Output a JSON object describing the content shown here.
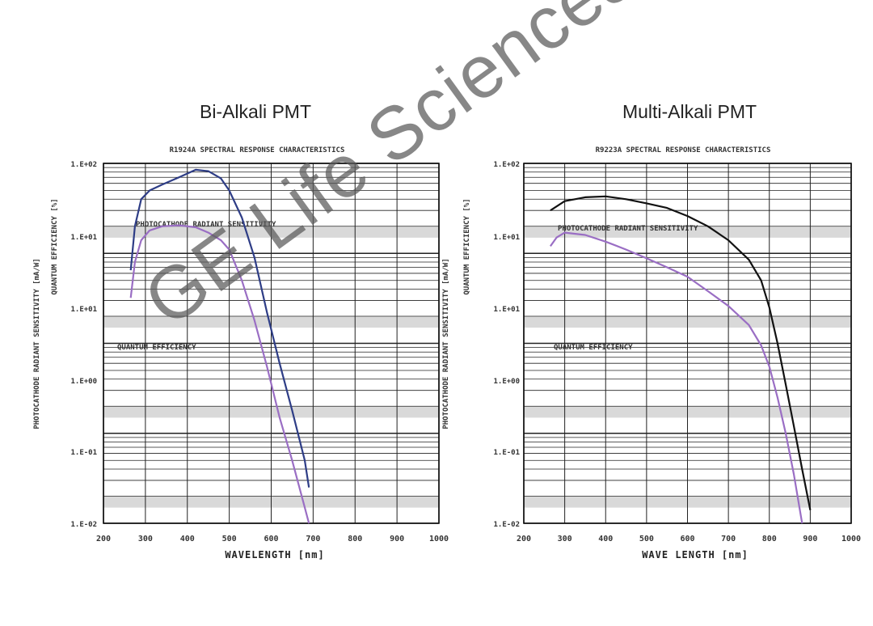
{
  "watermark": "GE Life Sciences",
  "chart_data": [
    {
      "type": "line",
      "title": "Bi-Alkali PMT",
      "subtitle": "R1924A SPECTRAL RESPONSE CHARACTERISTICS",
      "xlabel": "WAVELENGTH [nm]",
      "ylabel": "PHOTOCATHODE RADIANT SENSITIVITY [mA/W]",
      "ylabel2": "QUANTUM EFFICIENCY [%]",
      "yscale": "log",
      "xlim": [
        200,
        1000
      ],
      "ylim": [
        0.01,
        100
      ],
      "xticks": [
        "200",
        "300",
        "400",
        "500",
        "600",
        "700",
        "800",
        "900",
        "1000"
      ],
      "yticks": [
        "1.E+02",
        "1.E+01",
        "1.E+01",
        "1.E+00",
        "1.E-01",
        "1.E-02"
      ],
      "annotations": [
        "PHOTOCATHODE RADIANT SENSITIVITY",
        "QUANTUM EFFICIENCY"
      ],
      "grid": true,
      "series": [
        {
          "color": "#2e3d86",
          "x": [
            265,
            275,
            290,
            310,
            340,
            380,
            420,
            450,
            480,
            500,
            530,
            560,
            590,
            620,
            650,
            680,
            690
          ],
          "y": [
            6.5,
            20,
            40,
            50,
            58,
            70,
            85,
            82,
            68,
            50,
            25,
            9,
            2.2,
            0.6,
            0.18,
            0.05,
            0.025
          ]
        },
        {
          "color": "#9a6ec4",
          "x": [
            265,
            275,
            290,
            310,
            340,
            380,
            420,
            450,
            480,
            500,
            530,
            560,
            590,
            620,
            650,
            680,
            690
          ],
          "y": [
            3.2,
            8,
            14,
            18,
            20,
            20.5,
            19.5,
            17,
            14,
            11,
            5,
            1.8,
            0.55,
            0.15,
            0.05,
            0.015,
            0.01
          ]
        }
      ]
    },
    {
      "type": "line",
      "title": "Multi-Alkali PMT",
      "subtitle": "R9223A SPECTRAL RESPONSE CHARACTERISTICS",
      "xlabel": "WAVE LENGTH [nm]",
      "ylabel": "PHOTOCATHODE RADIANT SENSITIVITY [mA/W]",
      "ylabel2": "QUANTUM EFFICIENCY [%]",
      "yscale": "log",
      "xlim": [
        200,
        1000
      ],
      "ylim": [
        0.01,
        100
      ],
      "xticks": [
        "200",
        "300",
        "400",
        "500",
        "600",
        "700",
        "800",
        "900",
        "1000"
      ],
      "yticks": [
        "1.E+02",
        "1.E+01",
        "1.E+01",
        "1.E+00",
        "1.E-01",
        "1.E-02"
      ],
      "annotations": [
        "PHOTOCATHODE RADIANT SENSITIVITY",
        "QUANTUM EFFICIENCY"
      ],
      "grid": true,
      "series": [
        {
          "color": "#111111",
          "x": [
            265,
            300,
            350,
            400,
            450,
            500,
            550,
            600,
            650,
            700,
            750,
            780,
            800,
            820,
            840,
            860,
            880,
            900
          ],
          "y": [
            30,
            38,
            42,
            43,
            40,
            36,
            32,
            26,
            20,
            14,
            8.5,
            5,
            2.5,
            1,
            0.35,
            0.12,
            0.04,
            0.014
          ]
        },
        {
          "color": "#9a6ec4",
          "x": [
            265,
            280,
            300,
            350,
            400,
            450,
            500,
            550,
            600,
            650,
            700,
            750,
            780,
            800,
            820,
            840,
            860,
            880
          ],
          "y": [
            12,
            15,
            17,
            16,
            13.5,
            11,
            8.8,
            7,
            5.5,
            3.8,
            2.6,
            1.6,
            0.95,
            0.55,
            0.25,
            0.1,
            0.035,
            0.01
          ]
        }
      ]
    }
  ]
}
